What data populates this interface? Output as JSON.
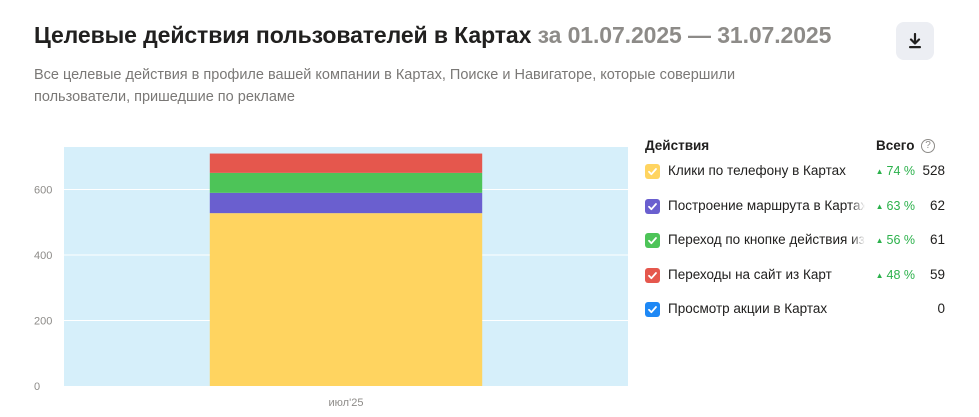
{
  "header": {
    "title": "Целевые действия пользователей в Картах",
    "period": "за 01.07.2025 — 31.07.2025",
    "subtitle": "Все целевые действия в профиле вашей компании в Картах, Поиске и Навигаторе, которые совершили пользователи, пришедшие по рекламе",
    "download_icon": "download-icon"
  },
  "legend": {
    "actions_header": "Действия",
    "total_header": "Всего",
    "info_icon": "?",
    "items": [
      {
        "label": "Клики по телефону в Картах",
        "delta": "74 %",
        "total": "528",
        "color": "#ffd460",
        "checked": true
      },
      {
        "label": "Построение маршрута в Картах",
        "delta": "63 %",
        "total": "62",
        "color": "#6a5fcf",
        "checked": true
      },
      {
        "label": "Переход по кнопке действия из Карт",
        "delta": "56 %",
        "total": "61",
        "color": "#4dc458",
        "checked": true
      },
      {
        "label": "Переходы на сайт из Карт",
        "delta": "48 %",
        "total": "59",
        "color": "#e5574d",
        "checked": true
      },
      {
        "label": "Просмотр акции в Картах",
        "delta": "",
        "total": "0",
        "color": "#1e88f5",
        "checked": true
      }
    ]
  },
  "chart_data": {
    "type": "bar",
    "stacked": true,
    "categories": [
      "июл'25"
    ],
    "series": [
      {
        "name": "Клики по телефону в Картах",
        "values": [
          528
        ],
        "color": "#ffd460"
      },
      {
        "name": "Построение маршрута в Картах",
        "values": [
          62
        ],
        "color": "#6a5fcf"
      },
      {
        "name": "Переход по кнопке действия из Карт",
        "values": [
          61
        ],
        "color": "#4dc458"
      },
      {
        "name": "Переходы на сайт из Карт",
        "values": [
          59
        ],
        "color": "#e5574d"
      },
      {
        "name": "Просмотр акции в Картах",
        "values": [
          0
        ],
        "color": "#1e88f5"
      }
    ],
    "yticks": [
      0,
      200,
      400,
      600
    ],
    "ylim": [
      0,
      730
    ],
    "grid": true,
    "plot_background": "#d6effa",
    "legend_position": "right",
    "xlabel": "",
    "ylabel": ""
  }
}
